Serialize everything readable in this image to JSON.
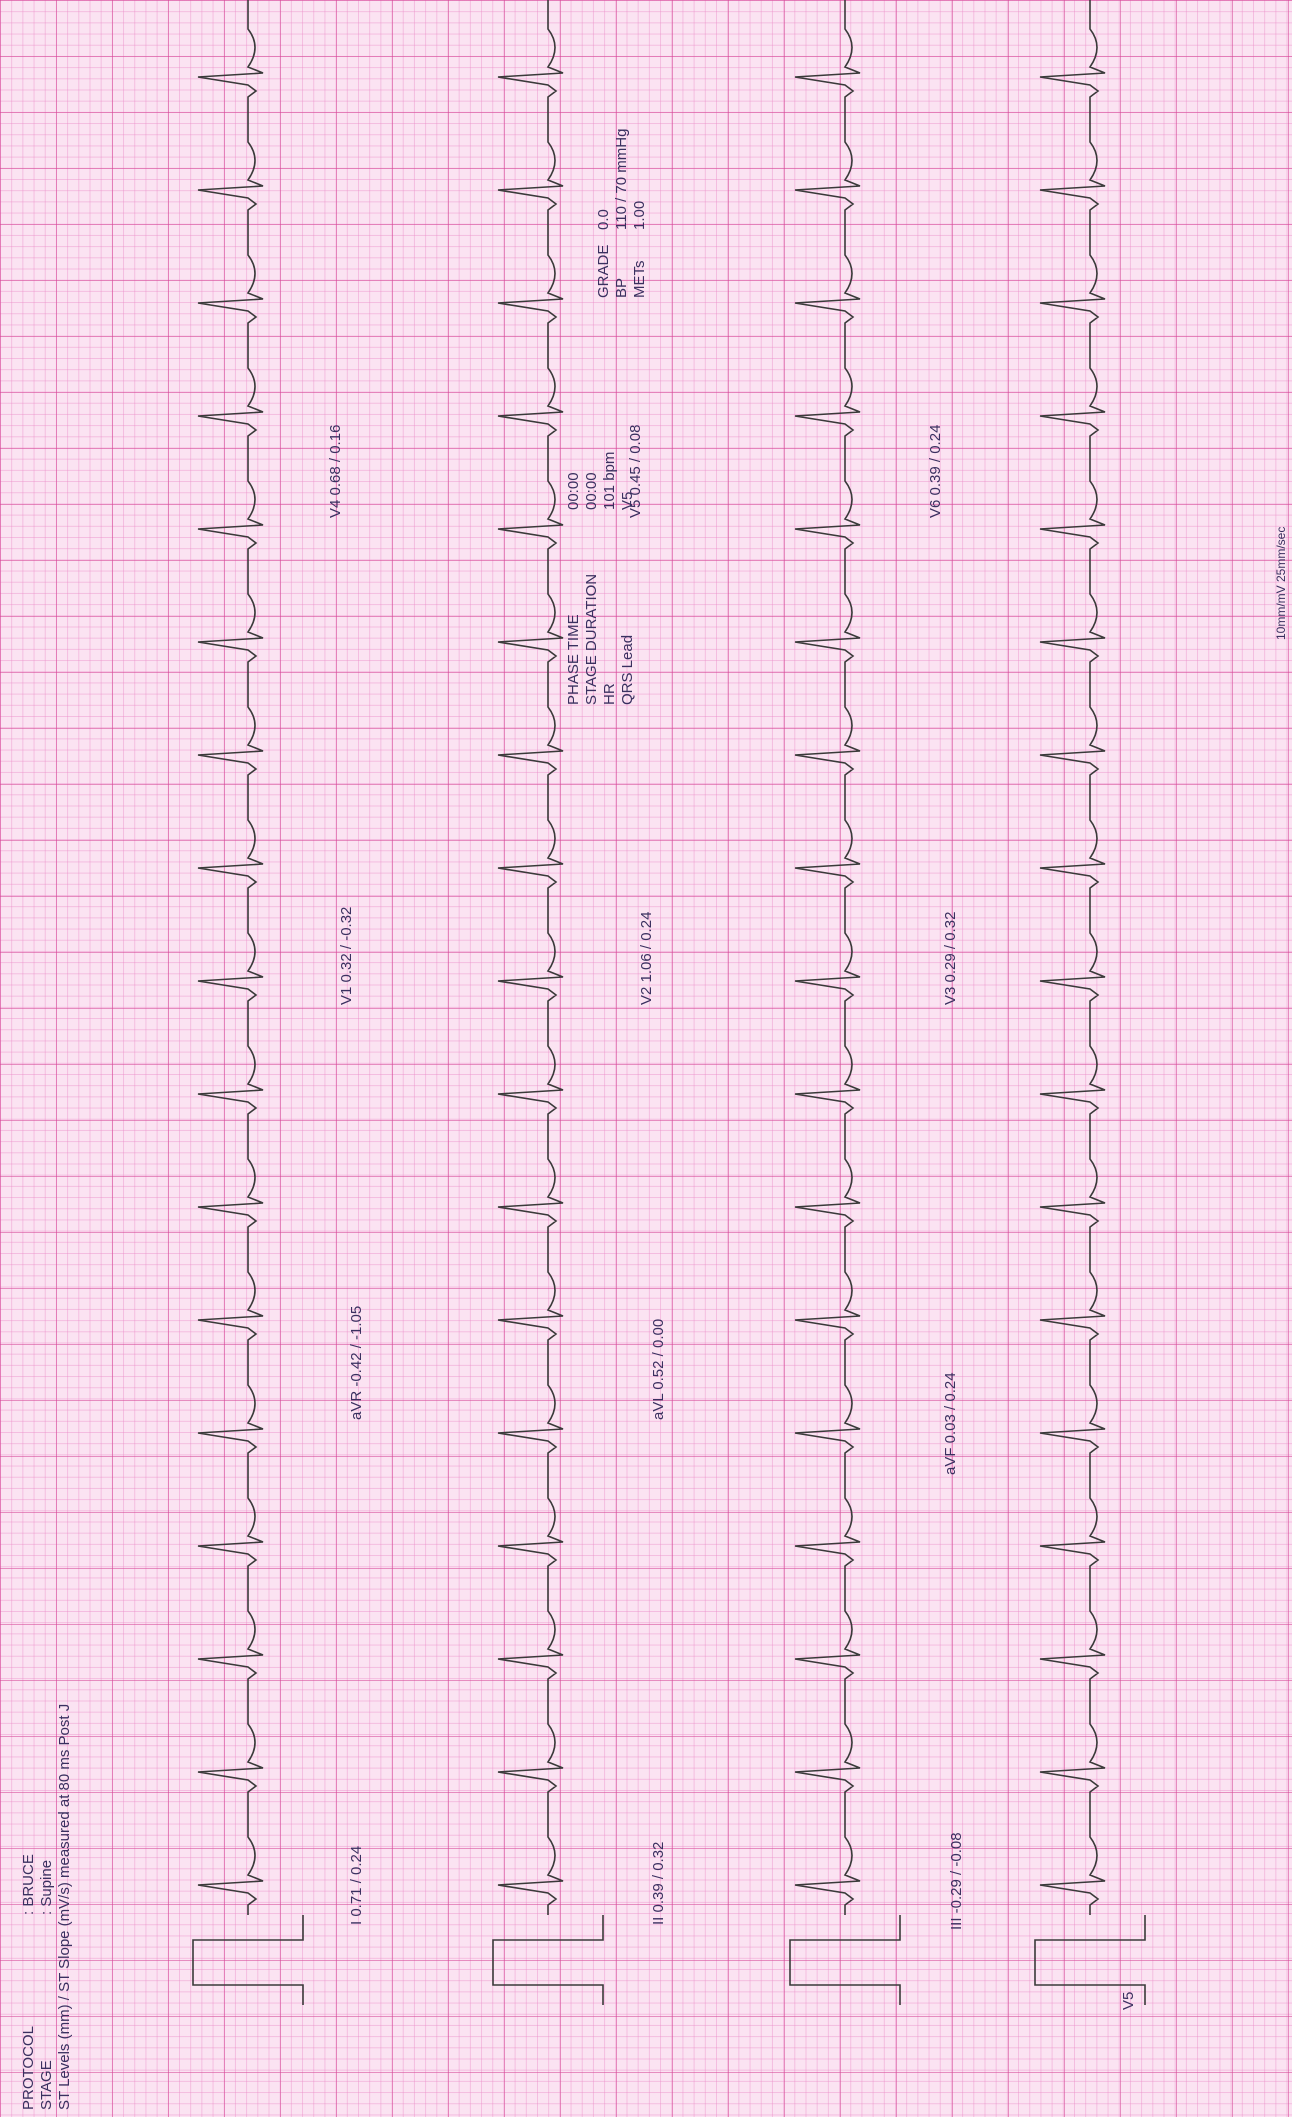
{
  "header": {
    "protocol_label": "PROTOCOL",
    "protocol_value": ": BRUCE",
    "stage_label": "STAGE",
    "stage_value": ": Supine",
    "st_levels_note": "ST Levels (mm) / ST Slope (mV/s) measured at 80 ms Post J",
    "phase_time_label": "PHASE TIME",
    "phase_time_value": "00:00",
    "stage_duration_label": "STAGE DURATION",
    "stage_duration_value": "00:00",
    "hr_label": "HR",
    "hr_value": "101 bpm",
    "qrs_lead_label": "QRS Lead",
    "qrs_lead_value": "V5",
    "grade_label": "GRADE",
    "grade_value": "0.0",
    "bp_label": "BP",
    "bp_value": "110 / 70 mmHg",
    "mets_label": "METs",
    "mets_value": "1.00"
  },
  "leads": {
    "I": "I  0.71 / 0.24",
    "II": "II  0.39 / 0.32",
    "III": "III  -0.29 / -0.08",
    "aVR": "aVR  -0.42 / -1.05",
    "aVL": "aVL  0.52 / 0.00",
    "aVF": "aVF  0.03 / 0.24",
    "V1": "V1  0.32 / -0.32",
    "V2": "V2  1.06 / 0.24",
    "V3": "V3  0.29 / 0.32",
    "V4": "V4  0.68 / 0.16",
    "V5": "V5  0.45 / 0.08",
    "V6": "V6  0.39 / 0.24",
    "rhythm": "V5"
  },
  "footer": {
    "calibration": "10mm/mV 25mm/sec"
  },
  "colors": {
    "paper": "#fbe3f2",
    "grid_major": "#d64696",
    "grid_minor": "#eb8cc8",
    "trace": "#3a3a3a",
    "text": "#3a3060"
  }
}
